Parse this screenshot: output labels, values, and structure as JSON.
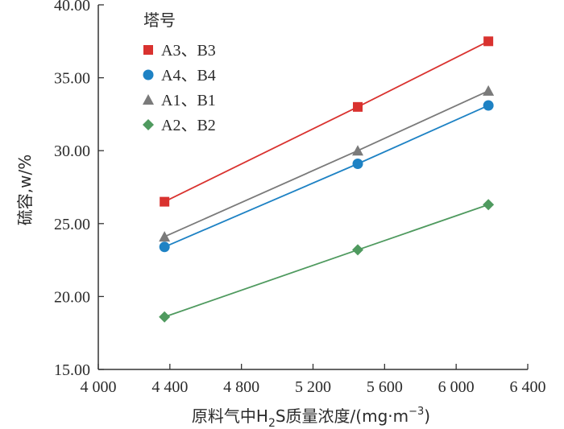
{
  "chart_data": {
    "type": "line",
    "title": "",
    "xlabel": {
      "main": "原料气中H",
      "sub": "2",
      "rest": "S质量浓度/(mg·m",
      "sup": "−3",
      "end": ")"
    },
    "ylabel": "硫容,w/%",
    "xlim": [
      4000,
      6400
    ],
    "ylim": [
      15,
      40
    ],
    "x_ticks": [
      4000,
      4400,
      4800,
      5200,
      5600,
      6000,
      6400
    ],
    "x_tick_labels": [
      "4 000",
      "4 400",
      "4 800",
      "5 200",
      "5 600",
      "6 000",
      "6 400"
    ],
    "y_ticks": [
      15,
      20,
      25,
      30,
      35,
      40
    ],
    "y_tick_labels": [
      "15.00",
      "20.00",
      "25.00",
      "30.00",
      "35.00",
      "40.00"
    ],
    "grid": false,
    "legend": {
      "title": "塔号",
      "placement": "top-left"
    },
    "series": [
      {
        "name": "A3、B3",
        "color": "#d9322f",
        "marker": "square",
        "x": [
          4370,
          5450,
          6180
        ],
        "y": [
          26.5,
          33.0,
          37.5
        ]
      },
      {
        "name": "A4、B4",
        "color": "#1e82c4",
        "marker": "circle",
        "x": [
          4370,
          5450,
          6180
        ],
        "y": [
          23.4,
          29.1,
          33.1
        ]
      },
      {
        "name": "A1、B1",
        "color": "#7a7a7a",
        "marker": "triangle",
        "x": [
          4370,
          5450,
          6180
        ],
        "y": [
          24.1,
          30.0,
          34.1
        ]
      },
      {
        "name": "A2、B2",
        "color": "#4f9a5f",
        "marker": "diamond",
        "x": [
          4370,
          5450,
          6180
        ],
        "y": [
          18.6,
          23.2,
          26.3
        ]
      }
    ]
  }
}
